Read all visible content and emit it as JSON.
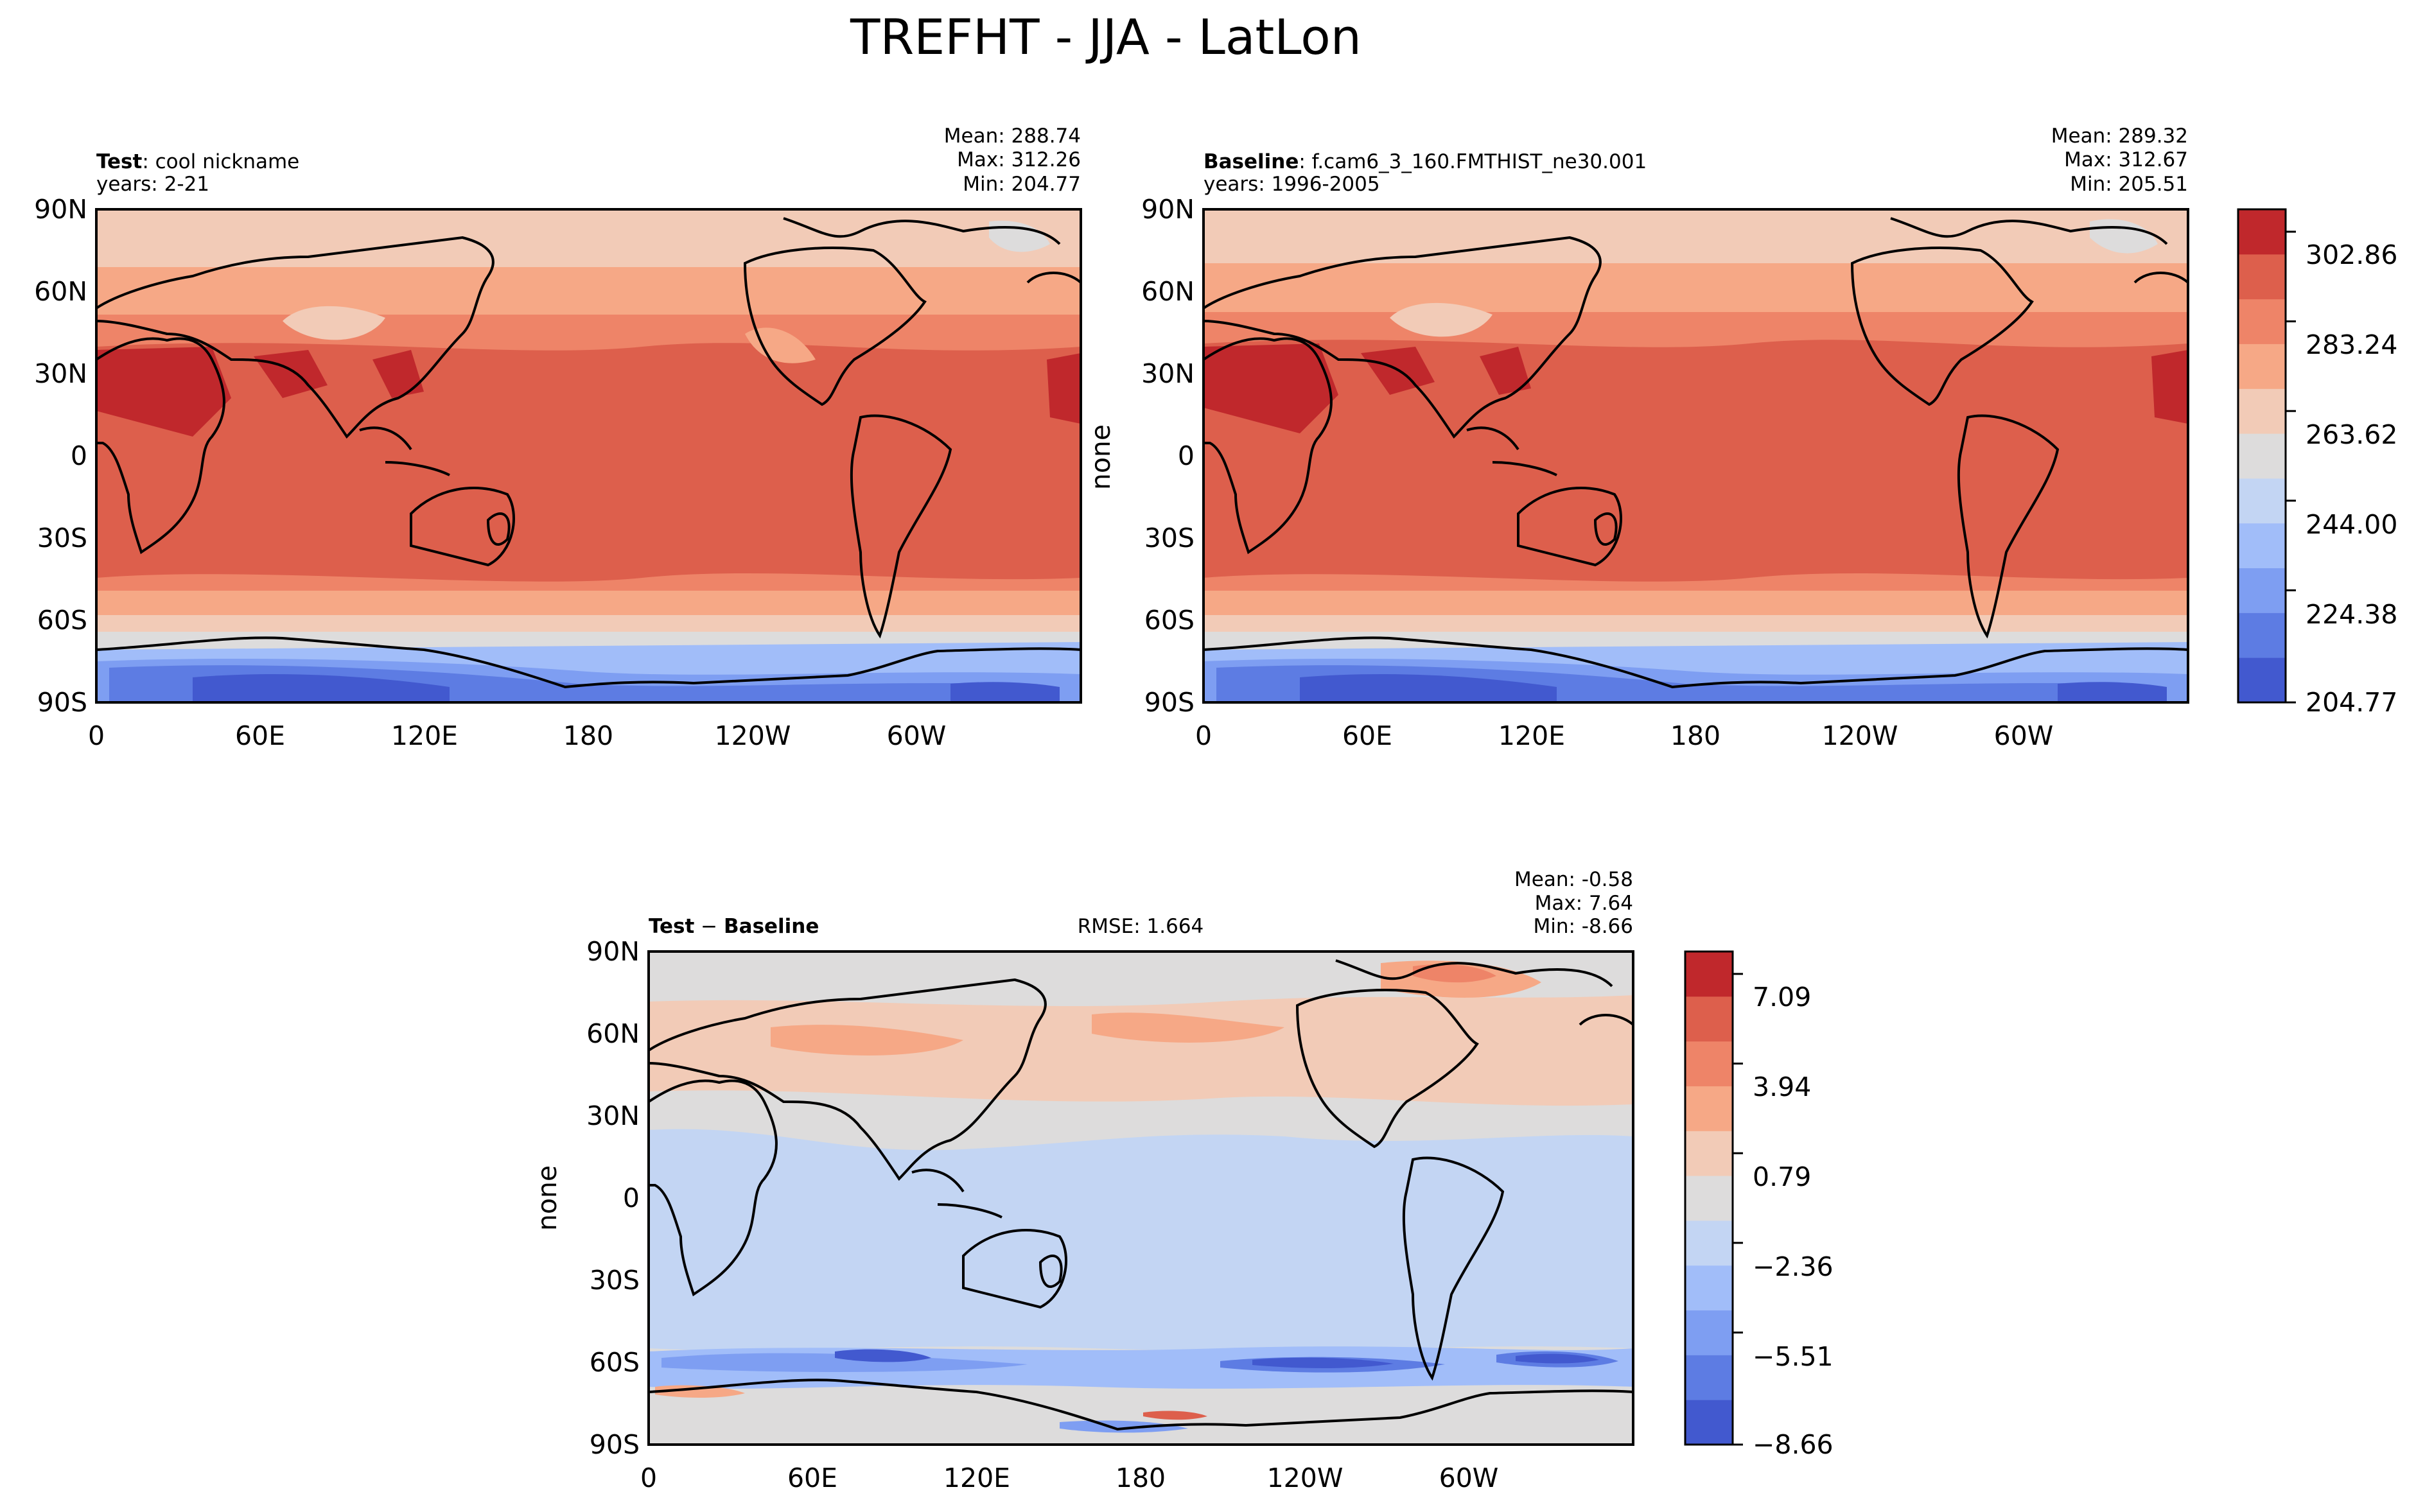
{
  "figure": {
    "title": "TREFHT - JJA - LatLon"
  },
  "panels": [
    {
      "id": "test",
      "label_bold": "Test",
      "label_rest": ": cool nickname",
      "years": "years: 2-21",
      "mean": "Mean: 288.74",
      "max": "Max: 312.26",
      "min": "Min: 204.77",
      "ylabel": "",
      "rmse": ""
    },
    {
      "id": "baseline",
      "label_bold": "Baseline",
      "label_rest": ": f.cam6_3_160.FMTHIST_ne30.001",
      "years": "years: 1996-2005",
      "mean": "Mean: 289.32",
      "max": "Max: 312.67",
      "min": "Min: 205.51",
      "ylabel": "none",
      "rmse": ""
    },
    {
      "id": "diff",
      "label_bold": "Test",
      "label_mid": " − ",
      "label_bold2": "Baseline",
      "years": "",
      "mean": "Mean: -0.58",
      "max": "Max:  7.64",
      "min": "Min: -8.66",
      "ylabel": "none",
      "rmse": "RMSE: 1.664"
    }
  ],
  "axes": {
    "lat_ticks": [
      "90N",
      "60N",
      "30N",
      "0",
      "30S",
      "60S",
      "90S"
    ],
    "lon_ticks": [
      "0",
      "60E",
      "120E",
      "180",
      "120W",
      "60W"
    ]
  },
  "colorbars": {
    "main": {
      "tick_labels": [
        "302.86",
        "283.24",
        "263.62",
        "244.00",
        "224.38",
        "204.77"
      ],
      "levels": 11,
      "colors": [
        "#4259cf",
        "#5d7ce3",
        "#7e9ef2",
        "#a1bdf9",
        "#c3d5f3",
        "#dddcdc",
        "#f2cbb7",
        "#f6a886",
        "#ee8468",
        "#dd5f4c",
        "#c0282c"
      ]
    },
    "diff": {
      "tick_labels": [
        "7.09",
        "3.94",
        "0.79",
        "−2.36",
        "−5.51",
        "−8.66"
      ],
      "levels": 11,
      "colors": [
        "#4259cf",
        "#5d7ce3",
        "#7e9ef2",
        "#a1bdf9",
        "#c3d5f3",
        "#dddcdc",
        "#f2cbb7",
        "#f6a886",
        "#ee8468",
        "#dd5f4c",
        "#c0282c"
      ]
    }
  },
  "chart_data": {
    "type": "heatmap",
    "variable": "TREFHT",
    "season": "JJA",
    "projection": "PlateCarree lat-lon",
    "xlim": [
      0,
      360
    ],
    "ylim": [
      -90,
      90
    ],
    "panels": [
      {
        "name": "Test",
        "mean": 288.74,
        "max": 312.26,
        "min": 204.77
      },
      {
        "name": "Baseline",
        "mean": 289.32,
        "max": 312.67,
        "min": 205.51
      },
      {
        "name": "Test − Baseline",
        "mean": -0.58,
        "max": 7.64,
        "min": -8.66,
        "rmse": 1.664
      }
    ],
    "contour_levels_main": [
      204.77,
      214.58,
      224.38,
      234.19,
      244.0,
      253.81,
      263.62,
      273.43,
      283.24,
      293.05,
      302.86,
      312.67
    ],
    "contour_levels_diff": [
      -8.66,
      -7.085,
      -5.51,
      -3.935,
      -2.36,
      -0.785,
      0.79,
      2.365,
      3.94,
      5.515,
      7.09,
      8.665
    ]
  }
}
